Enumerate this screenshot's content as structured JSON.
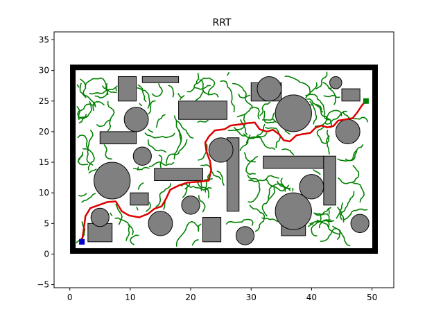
{
  "chart_data": {
    "type": "scatter",
    "title": "RRT",
    "xlabel": "",
    "ylabel": "",
    "xlim": [
      -2.6,
      53.6
    ],
    "ylim": [
      -5.5,
      36.3
    ],
    "xticks": [
      0,
      10,
      20,
      30,
      40,
      50
    ],
    "yticks": [
      -5,
      0,
      5,
      10,
      15,
      20,
      25,
      30,
      35
    ],
    "grid": false,
    "colors": {
      "boundary": "#000000",
      "obstacle_fill": "#808080",
      "obstacle_edge": "#000000",
      "tree": "#008000",
      "path": "#dd0000",
      "start": "#0000cc",
      "goal": "#008000"
    },
    "boundary": {
      "x0": 0.5,
      "y0": 0.5,
      "x1": 50.5,
      "y1": 30.5
    },
    "start": [
      2,
      2
    ],
    "goal": [
      49,
      25
    ],
    "rect_obstacles": [
      {
        "x": 8,
        "y": 25,
        "w": 3,
        "h": 4
      },
      {
        "x": 12,
        "y": 28,
        "w": 6,
        "h": 1
      },
      {
        "x": 18,
        "y": 22,
        "w": 8,
        "h": 3
      },
      {
        "x": 30,
        "y": 25,
        "w": 5,
        "h": 3
      },
      {
        "x": 45,
        "y": 25,
        "w": 3,
        "h": 2
      },
      {
        "x": 5,
        "y": 18,
        "w": 6,
        "h": 2
      },
      {
        "x": 14,
        "y": 12,
        "w": 8,
        "h": 2
      },
      {
        "x": 26,
        "y": 7,
        "w": 2,
        "h": 12
      },
      {
        "x": 32,
        "y": 14,
        "w": 10,
        "h": 2
      },
      {
        "x": 42,
        "y": 8,
        "w": 2,
        "h": 8
      },
      {
        "x": 10,
        "y": 8,
        "w": 3,
        "h": 2
      },
      {
        "x": 3,
        "y": 2,
        "w": 4,
        "h": 3
      },
      {
        "x": 22,
        "y": 2,
        "w": 3,
        "h": 4
      },
      {
        "x": 35,
        "y": 3,
        "w": 4,
        "h": 3
      }
    ],
    "circle_obstacles": [
      {
        "x": 11,
        "y": 22,
        "r": 2
      },
      {
        "x": 33,
        "y": 27,
        "r": 2
      },
      {
        "x": 37,
        "y": 23,
        "r": 3
      },
      {
        "x": 44,
        "y": 28,
        "r": 1
      },
      {
        "x": 46,
        "y": 20,
        "r": 2
      },
      {
        "x": 12,
        "y": 16,
        "r": 1.5
      },
      {
        "x": 25,
        "y": 17,
        "r": 2
      },
      {
        "x": 7,
        "y": 12,
        "r": 3
      },
      {
        "x": 40,
        "y": 11,
        "r": 2
      },
      {
        "x": 37,
        "y": 7,
        "r": 3
      },
      {
        "x": 20,
        "y": 8,
        "r": 1.5
      },
      {
        "x": 5,
        "y": 6,
        "r": 1.5
      },
      {
        "x": 15,
        "y": 5,
        "r": 2
      },
      {
        "x": 29,
        "y": 3,
        "r": 1.5
      },
      {
        "x": 48,
        "y": 5,
        "r": 1.5
      }
    ],
    "path": [
      [
        2,
        2
      ],
      [
        2.3,
        4.0
      ],
      [
        2.6,
        6.2
      ],
      [
        3.4,
        7.5
      ],
      [
        4.8,
        8.0
      ],
      [
        6.2,
        8.5
      ],
      [
        7.6,
        8.6
      ],
      [
        8.6,
        7.0
      ],
      [
        9.8,
        6.3
      ],
      [
        11.5,
        6.0
      ],
      [
        13.0,
        6.6
      ],
      [
        14.0,
        7.4
      ],
      [
        15.2,
        7.8
      ],
      [
        16.0,
        9.2
      ],
      [
        16.6,
        10.5
      ],
      [
        18.0,
        11.2
      ],
      [
        19.5,
        11.7
      ],
      [
        21.2,
        11.8
      ],
      [
        23.0,
        12.0
      ],
      [
        23.4,
        13.8
      ],
      [
        23.2,
        15.2
      ],
      [
        22.6,
        16.8
      ],
      [
        22.4,
        18.2
      ],
      [
        23.0,
        19.2
      ],
      [
        24.0,
        20.2
      ],
      [
        25.6,
        20.4
      ],
      [
        26.6,
        21.0
      ],
      [
        28.2,
        21.2
      ],
      [
        29.6,
        21.4
      ],
      [
        30.6,
        21.5
      ],
      [
        31.4,
        20.4
      ],
      [
        32.6,
        20.0
      ],
      [
        33.6,
        20.3
      ],
      [
        34.6,
        19.6
      ],
      [
        35.4,
        18.6
      ],
      [
        36.4,
        18.4
      ],
      [
        37.5,
        19.4
      ],
      [
        38.6,
        19.6
      ],
      [
        39.8,
        19.8
      ],
      [
        40.6,
        20.6
      ],
      [
        41.6,
        21.0
      ],
      [
        42.6,
        20.7
      ],
      [
        43.6,
        20.9
      ],
      [
        44.4,
        21.8
      ],
      [
        45.6,
        22.0
      ],
      [
        46.8,
        22.2
      ],
      [
        47.6,
        23.2
      ],
      [
        48.4,
        24.4
      ],
      [
        49,
        25
      ]
    ]
  }
}
